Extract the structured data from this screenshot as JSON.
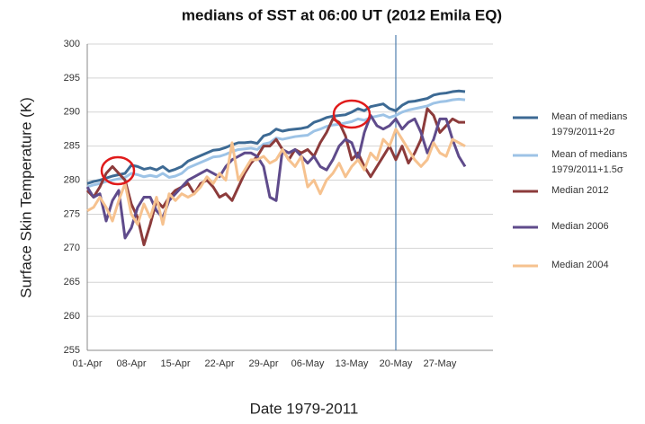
{
  "chart_data": {
    "type": "line",
    "title": "medians of SST at 06:00 UT (2012 Emila EQ)",
    "y_label": "Surface Skin Temperature (K)",
    "x_label": "Date 1979-2011",
    "categories": [
      "01-Apr",
      null,
      null,
      null,
      null,
      null,
      null,
      "08-Apr",
      null,
      null,
      null,
      null,
      null,
      null,
      "15-Apr",
      null,
      null,
      null,
      null,
      null,
      null,
      "22-Apr",
      null,
      null,
      null,
      null,
      null,
      null,
      "29-Apr",
      null,
      null,
      null,
      null,
      null,
      null,
      "06-May",
      null,
      null,
      null,
      null,
      null,
      null,
      "13-May",
      null,
      null,
      null,
      null,
      null,
      null,
      "20-May",
      null,
      null,
      null,
      null,
      null,
      null,
      "27-May",
      null,
      null,
      null,
      null
    ],
    "ylim": [
      255,
      300
    ],
    "yticks": [
      255,
      260,
      265,
      270,
      275,
      280,
      285,
      290,
      295,
      300
    ],
    "grid": true,
    "vertical_line_category": "20-May",
    "series": [
      {
        "name": "Mean of medians 1979/2011+2σ",
        "color": "#3d6a94",
        "values": [
          279.5,
          279.8,
          280,
          280.3,
          280.6,
          280.8,
          281.0,
          282.2,
          282.0,
          281.6,
          281.8,
          281.5,
          282.0,
          281.3,
          281.6,
          282.0,
          282.8,
          283.2,
          283.6,
          284.0,
          284.4,
          284.5,
          284.8,
          285.2,
          285.5,
          285.5,
          285.6,
          285.4,
          286.5,
          286.8,
          287.5,
          287.2,
          287.4,
          287.5,
          287.6,
          287.8,
          288.5,
          288.8,
          289.2,
          289.4,
          289.5,
          289.6,
          290.0,
          290.5,
          290.2,
          290.8,
          291.0,
          291.2,
          290.5,
          290.2,
          291.0,
          291.5,
          291.6,
          291.8,
          292.0,
          292.5,
          292.7,
          292.8,
          293.0,
          293.1,
          293.0
        ]
      },
      {
        "name": "Mean of medians 1979/2011+1.5σ",
        "color": "#9dc3e6",
        "values": [
          279,
          279.3,
          279.5,
          279.8,
          280,
          280.2,
          280.4,
          281,
          280.8,
          280.5,
          280.7,
          280.5,
          281,
          280.4,
          280.6,
          281,
          281.8,
          282.2,
          282.6,
          283,
          283.4,
          283.5,
          283.8,
          284.2,
          284.5,
          284.6,
          284.7,
          284.5,
          285.3,
          285.5,
          286.2,
          286,
          286.2,
          286.4,
          286.5,
          286.6,
          287.2,
          287.5,
          287.9,
          288.1,
          288.2,
          288.4,
          288.6,
          289,
          288.8,
          289.2,
          289.4,
          289.6,
          289.2,
          289.5,
          290,
          290.3,
          290.5,
          290.7,
          290.9,
          291.3,
          291.5,
          291.6,
          291.8,
          291.9,
          291.8
        ]
      },
      {
        "name": "Median 2012",
        "color": "#8c3b3b",
        "values": [
          278.5,
          277.5,
          279.0,
          281.0,
          282.0,
          281.0,
          280.0,
          276.5,
          274.5,
          270.5,
          273.5,
          277.0,
          276.0,
          277.5,
          278.5,
          279.0,
          279.5,
          278.0,
          279.5,
          280.0,
          279.0,
          277.5,
          278.0,
          277.0,
          279.0,
          281.0,
          282.5,
          283.5,
          285.0,
          285.0,
          286.0,
          284.5,
          283.0,
          284.5,
          284.0,
          284.5,
          283.5,
          285.5,
          287.0,
          289.0,
          288.5,
          286.5,
          283.0,
          284.0,
          282.0,
          280.5,
          282.0,
          283.5,
          285.0,
          283.0,
          285.0,
          282.5,
          284.0,
          286.0,
          290.5,
          289.5,
          287.0,
          288.0,
          289.0,
          288.5,
          288.5
        ]
      },
      {
        "name": "Median 2006",
        "color": "#5f4b8b",
        "values": [
          279.0,
          277.5,
          278.0,
          274.0,
          277.0,
          278.5,
          271.5,
          273.0,
          276.0,
          277.5,
          277.5,
          275.5,
          274.5,
          277.0,
          278.0,
          279.0,
          280.0,
          280.5,
          281.0,
          281.5,
          281.0,
          280.5,
          282.0,
          283.0,
          283.5,
          284.0,
          284.0,
          283.5,
          282.0,
          277.5,
          277.0,
          284.5,
          284.0,
          284.5,
          283.5,
          282.5,
          283.5,
          282.0,
          281.5,
          283.0,
          285.0,
          286.0,
          285.5,
          283.0,
          287.0,
          289.5,
          288.0,
          287.5,
          288.0,
          289.0,
          287.5,
          288.5,
          289.0,
          287.0,
          284.0,
          286.0,
          289.0,
          289.0,
          286.0,
          283.5,
          282.0
        ]
      },
      {
        "name": "Median 2004",
        "color": "#f6c28f",
        "values": [
          275.5,
          276.0,
          277.5,
          276.0,
          274.0,
          277.0,
          279.5,
          275.0,
          273.5,
          276.5,
          274.5,
          277.5,
          273.5,
          278.0,
          277.0,
          278.0,
          277.5,
          278.0,
          279.0,
          280.5,
          279.5,
          281.0,
          280.0,
          285.5,
          280.0,
          281.5,
          283.0,
          283.0,
          283.5,
          282.5,
          283.0,
          284.5,
          283.0,
          282.0,
          283.5,
          279.0,
          280.0,
          278.0,
          280.0,
          281.0,
          282.5,
          280.5,
          282.0,
          283.0,
          281.5,
          284.0,
          283.0,
          286.0,
          285.0,
          287.5,
          286.0,
          284.5,
          283.0,
          282.0,
          283.0,
          285.5,
          284.0,
          283.5,
          286.0,
          285.5,
          285.0
        ]
      }
    ]
  }
}
